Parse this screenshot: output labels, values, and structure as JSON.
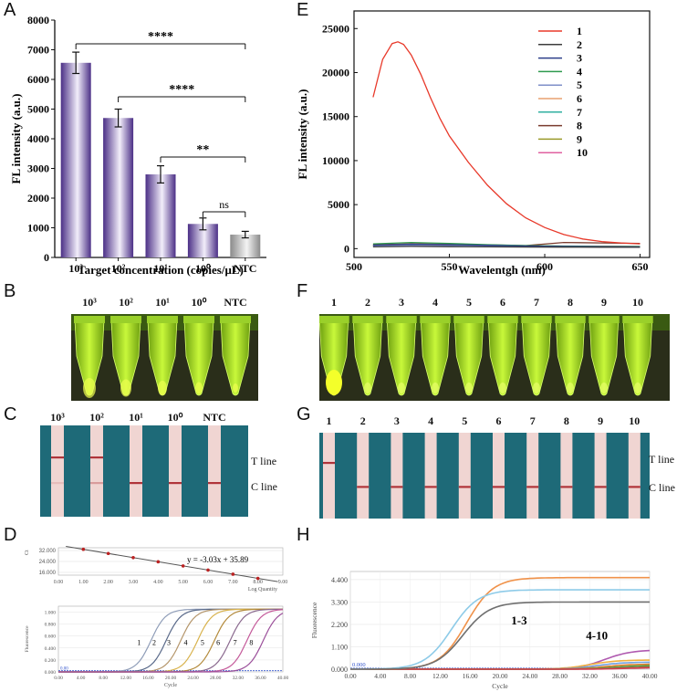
{
  "panel_labels": {
    "A": "A",
    "B": "B",
    "C": "C",
    "D": "D",
    "E": "E",
    "F": "F",
    "G": "G",
    "H": "H"
  },
  "colors": {
    "bar_purple": "#6c4ea3",
    "bar_gray": "#a9a9a9",
    "tube_green": "#b8f21a",
    "tube_bright": "#f4ff2a",
    "strip_bg": "#1e6a78",
    "strip_pink": "#f0d5d2",
    "band": "#b0343a"
  },
  "chart_data": [
    {
      "id": "A",
      "type": "bar",
      "title": "",
      "xlabel": "Target concentration (copies/μL)",
      "ylabel": "FL intensity (a.u.)",
      "categories": [
        "10³",
        "10²",
        "10¹",
        "10⁰",
        "NTC"
      ],
      "values": [
        6560,
        4700,
        2800,
        1130,
        770
      ],
      "errors": [
        360,
        300,
        290,
        200,
        110
      ],
      "ylim": [
        0,
        8000
      ],
      "yticks": [
        "0",
        "1000",
        "2000",
        "3000",
        "4000",
        "5000",
        "6000",
        "7000",
        "8000"
      ],
      "significance": [
        {
          "from": "10³",
          "to": "NTC",
          "label": "****"
        },
        {
          "from": "10²",
          "to": "NTC",
          "label": "****"
        },
        {
          "from": "10¹",
          "to": "NTC",
          "label": "**"
        },
        {
          "from": "10⁰",
          "to": "NTC",
          "label": "ns"
        }
      ]
    },
    {
      "id": "E",
      "type": "line",
      "xlabel": "Wavelentgh (nm)",
      "ylabel": "FL intensity (a.u.)",
      "xlim": [
        500,
        655
      ],
      "ylim": [
        -1000,
        27000
      ],
      "xticks": [
        "500",
        "550",
        "600",
        "650"
      ],
      "yticks": [
        "0",
        "5000",
        "10000",
        "15000",
        "20000",
        "25000"
      ],
      "legend_position": "top-right",
      "series": [
        {
          "name": "1",
          "color": "#e8392a",
          "x": [
            510,
            515,
            520,
            523,
            526,
            530,
            535,
            540,
            545,
            550,
            560,
            570,
            580,
            590,
            600,
            610,
            620,
            630,
            640,
            650
          ],
          "y": [
            17200,
            21500,
            23300,
            23500,
            23200,
            22000,
            19800,
            17200,
            14800,
            12800,
            9800,
            7200,
            5100,
            3500,
            2400,
            1600,
            1100,
            800,
            650,
            550
          ]
        },
        {
          "name": "2",
          "color": "#3d3d3d",
          "x": [
            510,
            530,
            550,
            570,
            590,
            610,
            630,
            650
          ],
          "y": [
            200,
            250,
            220,
            200,
            180,
            170,
            160,
            150
          ]
        },
        {
          "name": "3",
          "color": "#2d3f8a",
          "x": [
            510,
            530,
            550,
            570,
            590,
            610,
            630,
            650
          ],
          "y": [
            400,
            500,
            450,
            380,
            300,
            260,
            230,
            200
          ]
        },
        {
          "name": "4",
          "color": "#2e9a4e",
          "x": [
            510,
            530,
            550,
            570,
            590,
            610,
            630,
            650
          ],
          "y": [
            550,
            700,
            600,
            450,
            350,
            300,
            260,
            240
          ]
        },
        {
          "name": "5",
          "color": "#7f8fc8",
          "x": [
            510,
            530,
            550,
            570,
            590,
            610,
            630,
            650
          ],
          "y": [
            300,
            380,
            340,
            300,
            260,
            240,
            220,
            200
          ]
        },
        {
          "name": "6",
          "color": "#e8a070",
          "x": [
            510,
            530,
            550,
            570,
            590,
            610,
            630,
            650
          ],
          "y": [
            350,
            450,
            400,
            350,
            300,
            280,
            250,
            230
          ]
        },
        {
          "name": "7",
          "color": "#30b0a0",
          "x": [
            510,
            530,
            550,
            570,
            590,
            610,
            630,
            650
          ],
          "y": [
            250,
            320,
            300,
            260,
            230,
            210,
            190,
            180
          ]
        },
        {
          "name": "8",
          "color": "#7a3b2e",
          "x": [
            510,
            530,
            550,
            570,
            590,
            610,
            630,
            650
          ],
          "y": [
            450,
            550,
            500,
            420,
            350,
            700,
            650,
            600
          ]
        },
        {
          "name": "9",
          "color": "#9a9a2a",
          "x": [
            510,
            530,
            550,
            570,
            590,
            610,
            630,
            650
          ],
          "y": [
            380,
            480,
            430,
            370,
            320,
            290,
            260,
            240
          ]
        },
        {
          "name": "10",
          "color": "#e060a0",
          "x": [
            510,
            530,
            550,
            570,
            590,
            610,
            630,
            650
          ],
          "y": [
            320,
            400,
            370,
            320,
            280,
            260,
            240,
            220
          ]
        }
      ]
    },
    {
      "id": "D-top",
      "type": "scatter",
      "xlabel": "Log Quantity",
      "ylabel": "Ct",
      "equation": "y = -3.03x + 35.89",
      "slope": -3.03,
      "intercept": 35.89,
      "xlim": [
        0,
        9
      ],
      "ylim": [
        14,
        34
      ],
      "xticks": [
        "0.00",
        "1.00",
        "2.00",
        "3.00",
        "4.00",
        "5.00",
        "6.00",
        "7.00",
        "8.00",
        "9.00"
      ],
      "yticks": [
        "32.000",
        "24.000",
        "16.000"
      ],
      "ytick_values": [
        32,
        24,
        16
      ],
      "points_x": [
        1,
        2,
        3,
        4,
        5,
        6,
        7,
        8
      ]
    },
    {
      "id": "D-bottom",
      "type": "line",
      "xlabel": "Cycle",
      "ylabel": "Fluorescence",
      "xlim": [
        0,
        40
      ],
      "ylim": [
        0,
        1.1
      ],
      "threshold_label": "0.00",
      "xticks": [
        "0.00",
        "4.00",
        "8.00",
        "12.00",
        "16.00",
        "20.00",
        "24.00",
        "28.00",
        "32.00",
        "36.00",
        "40.00"
      ],
      "yticks": [
        "0.000",
        "0.200",
        "0.400",
        "0.600",
        "0.800",
        "1.000"
      ],
      "curve_labels": [
        "1",
        "2",
        "3",
        "4",
        "5",
        "6",
        "7",
        "8"
      ],
      "midpoints": [
        16.5,
        19.2,
        21.8,
        24.8,
        27.8,
        30.6,
        33.6,
        36.5
      ],
      "colors": [
        "#8f9db8",
        "#5a6a8a",
        "#b4956a",
        "#d8b24c",
        "#b38a3b",
        "#8b6a8f",
        "#c45a9a",
        "#9b4f9a"
      ]
    },
    {
      "id": "H",
      "type": "line",
      "xlabel": "Cycle",
      "ylabel": "Fluorescence",
      "xlim": [
        0,
        40
      ],
      "ylim": [
        0,
        4.8
      ],
      "threshold_label": "0.000",
      "xticks": [
        "0.00",
        "4.00",
        "8.00",
        "12.00",
        "16.00",
        "20.00",
        "24.00",
        "28.00",
        "32.00",
        "36.00",
        "40.00"
      ],
      "yticks": [
        "0.000",
        "1.100",
        "2.200",
        "3.300",
        "4.400"
      ],
      "group_labels": [
        "1-3",
        "4-10"
      ],
      "high_curves": [
        {
          "name": "1",
          "plateau": 4.5,
          "mid": 15.5,
          "color": "#f0924a"
        },
        {
          "name": "2",
          "plateau": 3.9,
          "mid": 13.5,
          "color": "#8ecbe8"
        },
        {
          "name": "3",
          "plateau": 3.3,
          "mid": 15.0,
          "color": "#6f6f6f"
        }
      ],
      "low_curves": [
        {
          "name": "4",
          "plateau": 0.95,
          "mid": 34,
          "color": "#b05ab0"
        },
        {
          "name": "5",
          "plateau": 0.45,
          "mid": 32,
          "color": "#f0b040"
        },
        {
          "name": "6",
          "plateau": 0.35,
          "mid": 33,
          "color": "#70a0e0"
        },
        {
          "name": "7",
          "plateau": 0.25,
          "mid": 34,
          "color": "#e0802a"
        },
        {
          "name": "8",
          "plateau": 0.18,
          "mid": 35,
          "color": "#4aa04a"
        },
        {
          "name": "9",
          "plateau": 0.12,
          "mid": 36,
          "color": "#a07040"
        },
        {
          "name": "10",
          "plateau": 0.08,
          "mid": 37,
          "color": "#d04050"
        }
      ]
    }
  ],
  "panel_B": {
    "labels": [
      "10³",
      "10²",
      "10¹",
      "10⁰",
      "NTC"
    ]
  },
  "panel_C": {
    "labels": [
      "10³",
      "10²",
      "10¹",
      "10⁰",
      "NTC"
    ],
    "t_line": "T line",
    "c_line": "C line"
  },
  "panel_F": {
    "labels": [
      "1",
      "2",
      "3",
      "4",
      "5",
      "6",
      "7",
      "8",
      "9",
      "10"
    ]
  },
  "panel_G": {
    "labels": [
      "1",
      "2",
      "3",
      "4",
      "5",
      "6",
      "7",
      "8",
      "9",
      "10"
    ],
    "t_line": "T line",
    "c_line": "C line"
  }
}
